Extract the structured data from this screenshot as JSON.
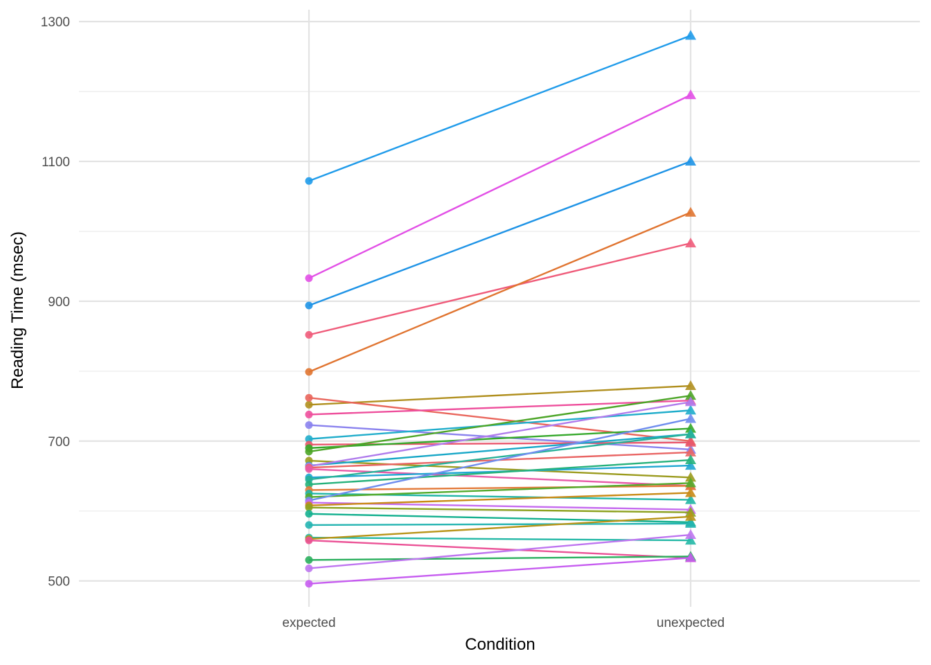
{
  "chart_data": {
    "type": "line",
    "title": "",
    "xlabel": "Condition",
    "ylabel": "Reading Time (msec)",
    "categories": [
      "expected",
      "unexpected"
    ],
    "ylim": [
      463,
      1317
    ],
    "yticks": [
      500,
      700,
      900,
      1100,
      1300
    ],
    "grid": true,
    "legend": "none",
    "marker_expected": "circle",
    "marker_unexpected": "triangle",
    "series": [
      {
        "values": [
          1072,
          1280
        ],
        "color": "#1F9BEA"
      },
      {
        "values": [
          933,
          1195
        ],
        "color": "#E24FE6"
      },
      {
        "values": [
          894,
          1100
        ],
        "color": "#1E93E6"
      },
      {
        "values": [
          852,
          983
        ],
        "color": "#EF5B7A"
      },
      {
        "values": [
          799,
          1027
        ],
        "color": "#E07430"
      },
      {
        "values": [
          752,
          779
        ],
        "color": "#B08F1E"
      },
      {
        "values": [
          762,
          700
        ],
        "color": "#E9655B"
      },
      {
        "values": [
          738,
          758
        ],
        "color": "#EE4F9C"
      },
      {
        "values": [
          723,
          688
        ],
        "color": "#8A82EE"
      },
      {
        "values": [
          703,
          744
        ],
        "color": "#20ADCB"
      },
      {
        "values": [
          695,
          698
        ],
        "color": "#E9566C"
      },
      {
        "values": [
          690,
          718
        ],
        "color": "#35A82B"
      },
      {
        "values": [
          685,
          765
        ],
        "color": "#4CA527"
      },
      {
        "values": [
          672,
          648
        ],
        "color": "#9B9B1E"
      },
      {
        "values": [
          665,
          710
        ],
        "color": "#17A7C7"
      },
      {
        "values": [
          664,
          756
        ],
        "color": "#AF7BEC"
      },
      {
        "values": [
          662,
          684
        ],
        "color": "#E96564"
      },
      {
        "values": [
          660,
          636
        ],
        "color": "#E85AA8"
      },
      {
        "values": [
          648,
          665
        ],
        "color": "#1FA6D1"
      },
      {
        "values": [
          645,
          710
        ],
        "color": "#27B198"
      },
      {
        "values": [
          638,
          673
        ],
        "color": "#25B17B"
      },
      {
        "values": [
          630,
          636
        ],
        "color": "#E37A3A"
      },
      {
        "values": [
          625,
          616
        ],
        "color": "#20B5A5"
      },
      {
        "values": [
          620,
          640
        ],
        "color": "#53AA2C"
      },
      {
        "values": [
          615,
          732
        ],
        "color": "#6F8DEE"
      },
      {
        "values": [
          612,
          602
        ],
        "color": "#C56BEF"
      },
      {
        "values": [
          608,
          626
        ],
        "color": "#C98A16"
      },
      {
        "values": [
          605,
          598
        ],
        "color": "#8DA21F"
      },
      {
        "values": [
          596,
          584
        ],
        "color": "#14B08F"
      },
      {
        "values": [
          580,
          582
        ],
        "color": "#24B4B1"
      },
      {
        "values": [
          562,
          558
        ],
        "color": "#24B8A6"
      },
      {
        "values": [
          560,
          592
        ],
        "color": "#B89418"
      },
      {
        "values": [
          558,
          533
        ],
        "color": "#EB5296"
      },
      {
        "values": [
          530,
          535
        ],
        "color": "#2AAF5D"
      },
      {
        "values": [
          518,
          566
        ],
        "color": "#BE75F0"
      },
      {
        "values": [
          496,
          533
        ],
        "color": "#C65CF0"
      }
    ]
  }
}
